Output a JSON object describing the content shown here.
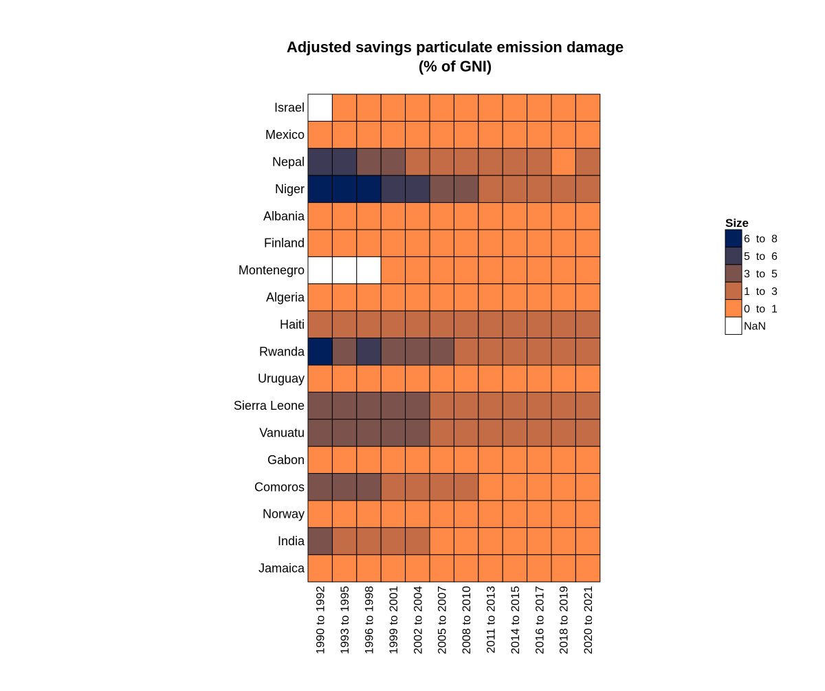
{
  "chart_data": {
    "type": "heatmap",
    "title": [
      "Adjusted savings particulate emission damage",
      "(% of GNI)"
    ],
    "rows": [
      "Israel",
      "Mexico",
      "Nepal",
      "Niger",
      "Albania",
      "Finland",
      "Montenegro",
      "Algeria",
      "Haiti",
      "Rwanda",
      "Uruguay",
      "Sierra Leone",
      "Vanuatu",
      "Gabon",
      "Comoros",
      "Norway",
      "India",
      "Jamaica"
    ],
    "columns": [
      "1990 to 1992",
      "1993 to 1995",
      "1996 to 1998",
      "1999 to 2001",
      "2002 to 2004",
      "2005 to 2007",
      "2008 to 2010",
      "2011 to 2013",
      "2014 to 2015",
      "2016 to 2017",
      "2018 to 2019",
      "2020 to 2021"
    ],
    "bins": [
      {
        "label": "6  to  8",
        "color": "#001f5b"
      },
      {
        "label": "5  to  6",
        "color": "#3d3a55"
      },
      {
        "label": "3  to  5",
        "color": "#7b534c"
      },
      {
        "label": "1  to  3",
        "color": "#c46c46"
      },
      {
        "label": "0  to  1",
        "color": "#ff8a47"
      },
      {
        "label": "NaN",
        "color": "#ffffff"
      }
    ],
    "legend": {
      "title": "Size",
      "position": "right"
    },
    "values": [
      [
        "NaN",
        "0  to  1",
        "0  to  1",
        "0  to  1",
        "0  to  1",
        "0  to  1",
        "0  to  1",
        "0  to  1",
        "0  to  1",
        "0  to  1",
        "0  to  1",
        "0  to  1"
      ],
      [
        "0  to  1",
        "0  to  1",
        "0  to  1",
        "0  to  1",
        "0  to  1",
        "0  to  1",
        "0  to  1",
        "0  to  1",
        "0  to  1",
        "0  to  1",
        "0  to  1",
        "0  to  1"
      ],
      [
        "5  to  6",
        "5  to  6",
        "3  to  5",
        "3  to  5",
        "1  to  3",
        "1  to  3",
        "1  to  3",
        "1  to  3",
        "1  to  3",
        "1  to  3",
        "0  to  1",
        "1  to  3"
      ],
      [
        "6  to  8",
        "6  to  8",
        "6  to  8",
        "5  to  6",
        "5  to  6",
        "3  to  5",
        "3  to  5",
        "1  to  3",
        "1  to  3",
        "1  to  3",
        "1  to  3",
        "1  to  3"
      ],
      [
        "0  to  1",
        "0  to  1",
        "0  to  1",
        "0  to  1",
        "0  to  1",
        "0  to  1",
        "0  to  1",
        "0  to  1",
        "0  to  1",
        "0  to  1",
        "0  to  1",
        "0  to  1"
      ],
      [
        "0  to  1",
        "0  to  1",
        "0  to  1",
        "0  to  1",
        "0  to  1",
        "0  to  1",
        "0  to  1",
        "0  to  1",
        "0  to  1",
        "0  to  1",
        "0  to  1",
        "0  to  1"
      ],
      [
        "NaN",
        "NaN",
        "NaN",
        "0  to  1",
        "0  to  1",
        "0  to  1",
        "0  to  1",
        "0  to  1",
        "0  to  1",
        "0  to  1",
        "0  to  1",
        "0  to  1"
      ],
      [
        "0  to  1",
        "0  to  1",
        "0  to  1",
        "0  to  1",
        "0  to  1",
        "0  to  1",
        "0  to  1",
        "0  to  1",
        "0  to  1",
        "0  to  1",
        "0  to  1",
        "0  to  1"
      ],
      [
        "1  to  3",
        "1  to  3",
        "1  to  3",
        "1  to  3",
        "1  to  3",
        "1  to  3",
        "1  to  3",
        "1  to  3",
        "1  to  3",
        "1  to  3",
        "1  to  3",
        "1  to  3"
      ],
      [
        "6  to  8",
        "3  to  5",
        "5  to  6",
        "3  to  5",
        "3  to  5",
        "3  to  5",
        "1  to  3",
        "1  to  3",
        "1  to  3",
        "1  to  3",
        "1  to  3",
        "1  to  3"
      ],
      [
        "0  to  1",
        "0  to  1",
        "0  to  1",
        "0  to  1",
        "0  to  1",
        "0  to  1",
        "0  to  1",
        "0  to  1",
        "0  to  1",
        "0  to  1",
        "0  to  1",
        "0  to  1"
      ],
      [
        "3  to  5",
        "3  to  5",
        "3  to  5",
        "3  to  5",
        "3  to  5",
        "1  to  3",
        "1  to  3",
        "1  to  3",
        "1  to  3",
        "1  to  3",
        "1  to  3",
        "1  to  3"
      ],
      [
        "3  to  5",
        "3  to  5",
        "3  to  5",
        "3  to  5",
        "3  to  5",
        "1  to  3",
        "1  to  3",
        "1  to  3",
        "1  to  3",
        "1  to  3",
        "1  to  3",
        "1  to  3"
      ],
      [
        "0  to  1",
        "0  to  1",
        "0  to  1",
        "0  to  1",
        "0  to  1",
        "0  to  1",
        "0  to  1",
        "0  to  1",
        "0  to  1",
        "0  to  1",
        "0  to  1",
        "0  to  1"
      ],
      [
        "3  to  5",
        "3  to  5",
        "3  to  5",
        "1  to  3",
        "1  to  3",
        "1  to  3",
        "1  to  3",
        "0  to  1",
        "0  to  1",
        "0  to  1",
        "0  to  1",
        "0  to  1"
      ],
      [
        "0  to  1",
        "0  to  1",
        "0  to  1",
        "0  to  1",
        "0  to  1",
        "0  to  1",
        "0  to  1",
        "0  to  1",
        "0  to  1",
        "0  to  1",
        "0  to  1",
        "0  to  1"
      ],
      [
        "3  to  5",
        "1  to  3",
        "1  to  3",
        "1  to  3",
        "1  to  3",
        "0  to  1",
        "0  to  1",
        "0  to  1",
        "0  to  1",
        "0  to  1",
        "0  to  1",
        "0  to  1"
      ],
      [
        "0  to  1",
        "0  to  1",
        "0  to  1",
        "0  to  1",
        "0  to  1",
        "0  to  1",
        "0  to  1",
        "0  to  1",
        "0  to  1",
        "0  to  1",
        "0  to  1",
        "0  to  1"
      ]
    ]
  }
}
